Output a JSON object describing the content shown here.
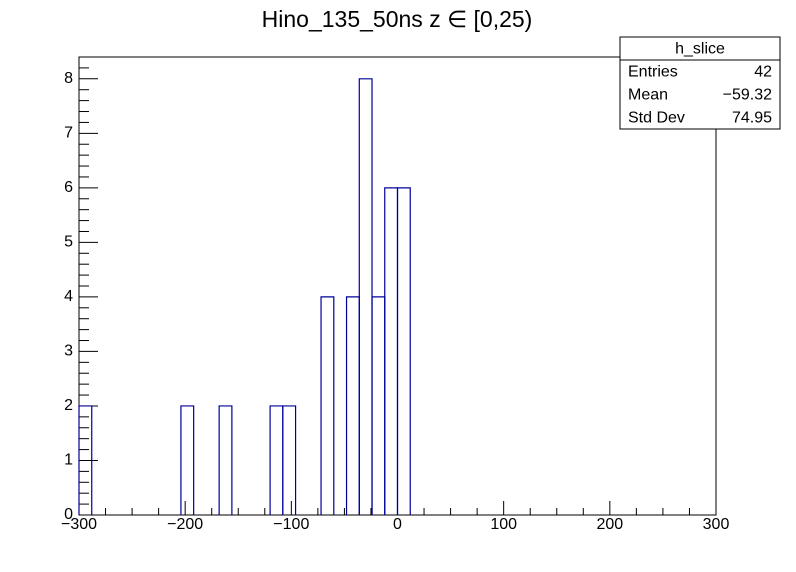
{
  "chart_data": {
    "type": "histogram",
    "title": "Hino_135_50ns z  ∈ [0,25)",
    "bins": [
      -300,
      -288,
      -276,
      -264,
      -252,
      -240,
      -228,
      -216,
      -204,
      -192,
      -180,
      -168,
      -156,
      -144,
      -132,
      -120,
      -108,
      -96,
      -84,
      -72,
      -60,
      -48,
      -36,
      -24,
      -12,
      0,
      12,
      24,
      36,
      48,
      60,
      72,
      84,
      96,
      108,
      120,
      132,
      144,
      156,
      168,
      180,
      192,
      204,
      216,
      228,
      240,
      252,
      264,
      276,
      288,
      300
    ],
    "values": [
      2,
      0,
      0,
      0,
      0,
      0,
      0,
      0,
      2,
      0,
      0,
      2,
      0,
      0,
      0,
      2,
      2,
      0,
      0,
      4,
      0,
      4,
      8,
      4,
      6,
      6,
      0,
      0,
      0,
      0,
      0,
      0,
      0,
      0,
      0,
      0,
      0,
      0,
      0,
      0,
      0,
      0,
      0,
      0,
      0,
      0,
      0,
      0,
      0,
      0
    ],
    "color": "#000099",
    "xlim": [
      -300,
      300
    ],
    "xticks": [
      {
        "value": -300,
        "label": "−300"
      },
      {
        "value": -200,
        "label": "−200"
      },
      {
        "value": -100,
        "label": "−100"
      },
      0,
      100,
      200,
      300
    ],
    "ylim": [
      0,
      8.4
    ],
    "yticks": [
      0,
      1,
      2,
      3,
      4,
      5,
      6,
      7,
      8
    ],
    "stats": {
      "title": "h_slice",
      "rows": [
        [
          "Entries",
          "42"
        ],
        [
          "Mean",
          "−59.32"
        ],
        [
          "Std Dev",
          "74.95"
        ]
      ]
    }
  }
}
